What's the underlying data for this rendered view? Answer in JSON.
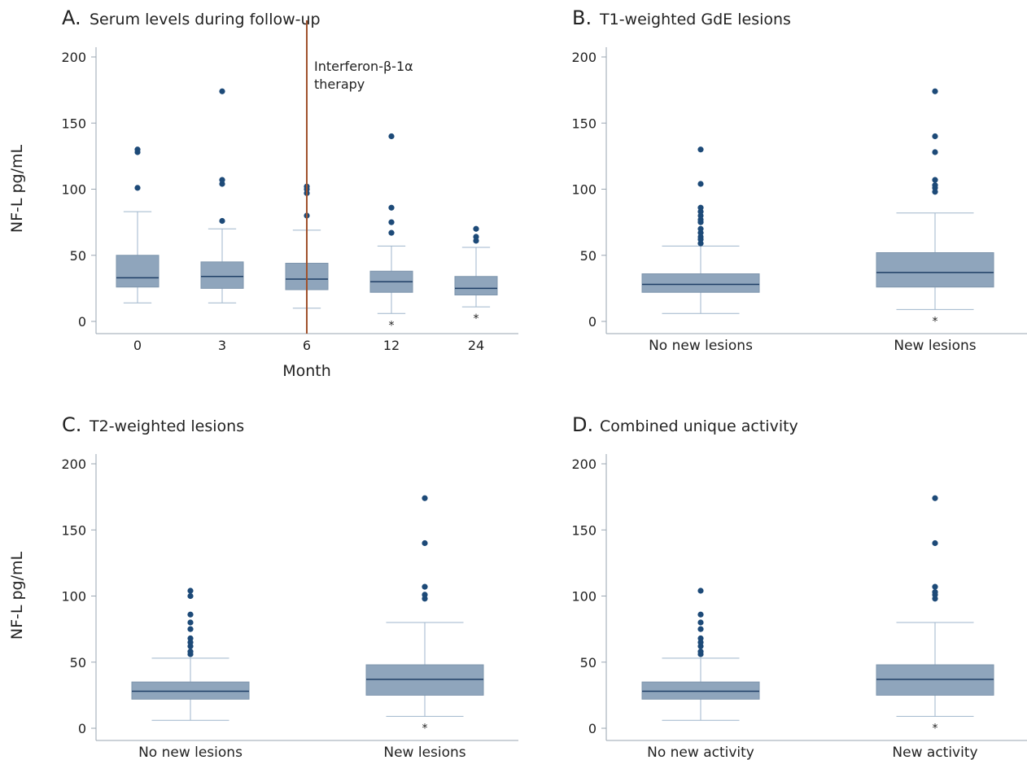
{
  "y_axis_label": "NF-L pg/mL",
  "colors": {
    "box_fill": "#8fa5bc",
    "box_edge": "#7e95ad",
    "whisker": "#9fb6cc",
    "median": "#1f3f66",
    "outlier": "#1d4a78",
    "axis": "#9aa6b2",
    "therapy_line": "#a0522d"
  },
  "chart_data": [
    {
      "type": "box",
      "panel_letter": "A.",
      "title": "Serum levels during follow-up",
      "xlabel": "Month",
      "ylabel": "NF-L pg/mL",
      "ylim": [
        0,
        200
      ],
      "yticks": [
        0,
        50,
        100,
        150,
        200
      ],
      "categories": [
        "0",
        "3",
        "6",
        "12",
        "24"
      ],
      "boxes": [
        {
          "q1": 26,
          "median": 33,
          "q3": 50,
          "whisker_low": 14,
          "whisker_high": 83,
          "outliers": [
            101,
            128,
            130
          ],
          "star": false
        },
        {
          "q1": 25,
          "median": 34,
          "q3": 45,
          "whisker_low": 14,
          "whisker_high": 70,
          "outliers": [
            76,
            104,
            107,
            174
          ],
          "star": false
        },
        {
          "q1": 24,
          "median": 32,
          "q3": 44,
          "whisker_low": 10,
          "whisker_high": 69,
          "outliers": [
            80,
            97,
            100,
            102
          ],
          "star": false
        },
        {
          "q1": 22,
          "median": 30,
          "q3": 38,
          "whisker_low": 6,
          "whisker_high": 57,
          "outliers": [
            67,
            75,
            86,
            140
          ],
          "star": true
        },
        {
          "q1": 20,
          "median": 25,
          "q3": 34,
          "whisker_low": 11,
          "whisker_high": 56,
          "outliers": [
            61,
            64,
            70
          ],
          "star": true
        }
      ],
      "annotation": {
        "text_line1": "Interferon-β-1α",
        "text_line2": "therapy",
        "at_category": "6"
      }
    },
    {
      "type": "box",
      "panel_letter": "B.",
      "title": "T1-weighted GdE lesions",
      "xlabel": "",
      "ylim": [
        0,
        200
      ],
      "yticks": [
        0,
        50,
        100,
        150,
        200
      ],
      "categories": [
        "No new lesions",
        "New lesions"
      ],
      "boxes": [
        {
          "q1": 22,
          "median": 28,
          "q3": 36,
          "whisker_low": 6,
          "whisker_high": 57,
          "outliers": [
            59,
            62,
            64,
            67,
            70,
            75,
            77,
            80,
            83,
            86,
            104,
            130
          ],
          "star": false
        },
        {
          "q1": 26,
          "median": 37,
          "q3": 52,
          "whisker_low": 9,
          "whisker_high": 82,
          "outliers": [
            98,
            101,
            103,
            107,
            128,
            140,
            174
          ],
          "star": true
        }
      ]
    },
    {
      "type": "box",
      "panel_letter": "C.",
      "title": "T2-weighted lesions",
      "xlabel": "",
      "ylabel": "NF-L pg/mL",
      "ylim": [
        0,
        200
      ],
      "yticks": [
        0,
        50,
        100,
        150,
        200
      ],
      "categories": [
        "No new lesions",
        "New lesions"
      ],
      "boxes": [
        {
          "q1": 22,
          "median": 28,
          "q3": 35,
          "whisker_low": 6,
          "whisker_high": 53,
          "outliers": [
            56,
            58,
            62,
            65,
            68,
            75,
            80,
            86,
            100,
            104
          ],
          "star": false
        },
        {
          "q1": 25,
          "median": 37,
          "q3": 48,
          "whisker_low": 9,
          "whisker_high": 80,
          "outliers": [
            98,
            101,
            107,
            140,
            174
          ],
          "star": true
        }
      ]
    },
    {
      "type": "box",
      "panel_letter": "D.",
      "title": "Combined unique activity",
      "xlabel": "",
      "ylim": [
        0,
        200
      ],
      "yticks": [
        0,
        50,
        100,
        150,
        200
      ],
      "categories": [
        "No new activity",
        "New activity"
      ],
      "boxes": [
        {
          "q1": 22,
          "median": 28,
          "q3": 35,
          "whisker_low": 6,
          "whisker_high": 53,
          "outliers": [
            56,
            58,
            62,
            65,
            68,
            75,
            80,
            86,
            104
          ],
          "star": false
        },
        {
          "q1": 25,
          "median": 37,
          "q3": 48,
          "whisker_low": 9,
          "whisker_high": 80,
          "outliers": [
            98,
            101,
            103,
            107,
            140,
            174
          ],
          "star": true
        }
      ]
    }
  ]
}
